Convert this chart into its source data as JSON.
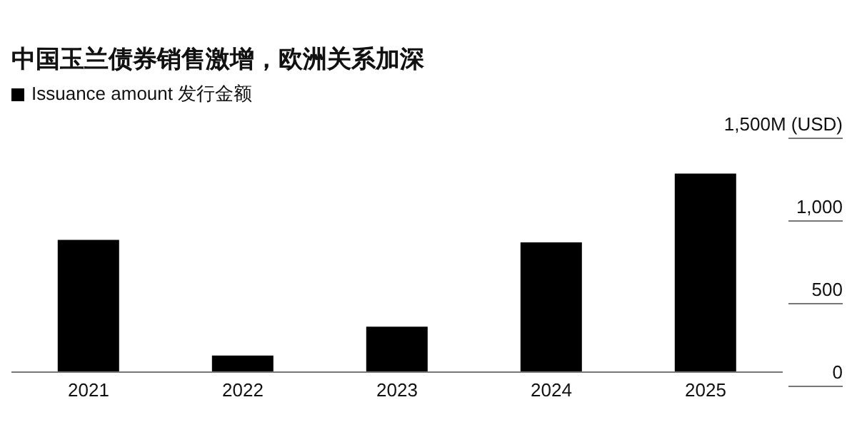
{
  "chart_data": {
    "type": "bar",
    "title": "中国玉兰债券销售激增，欧洲关系加深",
    "categories": [
      "2021",
      "2022",
      "2023",
      "2024",
      "2025"
    ],
    "series": [
      {
        "name": "Issuance amount  发行金额",
        "color": "#000000",
        "values": [
          800,
          100,
          275,
          785,
          1200
        ]
      }
    ],
    "ylim": [
      0,
      1500
    ],
    "yticks": [
      0,
      500,
      {
        "value": 1000,
        "label": "1,000"
      },
      {
        "value": 1500,
        "label": "1,500M (USD)"
      }
    ],
    "legend": "top left"
  }
}
